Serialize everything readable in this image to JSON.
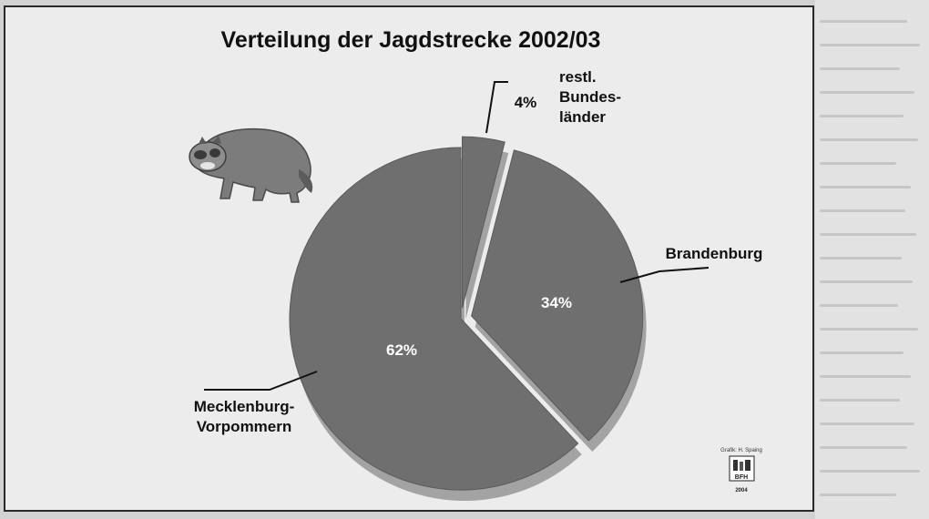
{
  "chart_data": {
    "type": "pie",
    "title": "Verteilung der Jagdstrecke 2002/03",
    "slices": [
      {
        "label": "Mecklenburg-\nVorpommern",
        "value": 62,
        "value_label": "62%",
        "exploded": false
      },
      {
        "label": "Brandenburg",
        "value": 34,
        "value_label": "34%",
        "exploded": true
      },
      {
        "label": "restl.\nBundes-\nländer",
        "value": 4,
        "value_label": "4%",
        "exploded": true
      }
    ],
    "colors": {
      "slice": "#6f6f6f",
      "shadow": "#a3a3a3",
      "label_on_slice": "#ffffff",
      "leader": "#111111"
    },
    "legend": "none"
  },
  "credit": {
    "author": "Grafik: H. Spaing",
    "logo_text": "BFH",
    "year": "2004"
  },
  "illustration": {
    "icon": "raccoon-dog-icon"
  }
}
